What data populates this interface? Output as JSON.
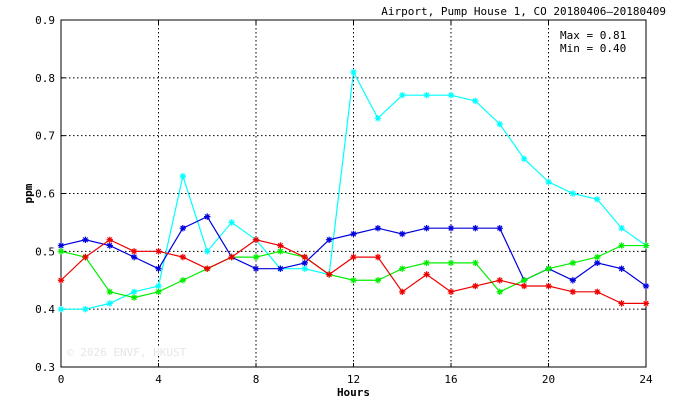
{
  "chart_data": {
    "type": "line",
    "title": "Airport, Pump House 1, CO 20180406–20180409",
    "xlabel": "Hours",
    "ylabel": "ppm",
    "xlim": [
      0,
      24
    ],
    "ylim": [
      0.3,
      0.9
    ],
    "x_ticks": [
      0,
      4,
      8,
      12,
      16,
      20,
      24
    ],
    "y_ticks": [
      0.3,
      0.4,
      0.5,
      0.6,
      0.7,
      0.8,
      0.9
    ],
    "grid": true,
    "marker": "asterisk",
    "stats": {
      "max_label": "Max = 0.81",
      "min_label": "Min = 0.40"
    },
    "watermark": "© 2026  ENVF, HKUST",
    "x": [
      0,
      1,
      2,
      3,
      4,
      5,
      6,
      7,
      8,
      9,
      10,
      11,
      12,
      13,
      14,
      15,
      16,
      17,
      18,
      19,
      20,
      21,
      22,
      23,
      24
    ],
    "series": [
      {
        "color": "#00ffff",
        "values": [
          0.4,
          0.4,
          0.41,
          0.43,
          0.44,
          0.63,
          0.5,
          0.55,
          0.52,
          0.47,
          0.47,
          0.46,
          0.81,
          0.73,
          0.77,
          0.77,
          0.77,
          0.76,
          0.72,
          0.66,
          0.62,
          0.6,
          0.59,
          0.54,
          0.51
        ]
      },
      {
        "color": "#0000dd",
        "values": [
          0.51,
          0.52,
          0.51,
          0.49,
          0.47,
          0.54,
          0.56,
          0.49,
          0.47,
          0.47,
          0.48,
          0.52,
          0.53,
          0.54,
          0.53,
          0.54,
          0.54,
          0.54,
          0.54,
          0.45,
          0.47,
          0.45,
          0.48,
          0.47,
          0.44
        ]
      },
      {
        "color": "#00ee00",
        "values": [
          0.5,
          0.49,
          0.43,
          0.42,
          0.43,
          0.45,
          0.47,
          0.49,
          0.49,
          0.5,
          0.49,
          0.46,
          0.45,
          0.45,
          0.47,
          0.48,
          0.48,
          0.48,
          0.43,
          0.45,
          0.47,
          0.48,
          0.49,
          0.51,
          0.51
        ]
      },
      {
        "color": "#ee0000",
        "values": [
          0.45,
          0.49,
          0.52,
          0.5,
          0.5,
          0.49,
          0.47,
          0.49,
          0.52,
          0.51,
          0.49,
          0.46,
          0.49,
          0.49,
          0.43,
          0.46,
          0.43,
          0.44,
          0.45,
          0.44,
          0.44,
          0.43,
          0.43,
          0.41,
          0.41
        ]
      }
    ]
  }
}
